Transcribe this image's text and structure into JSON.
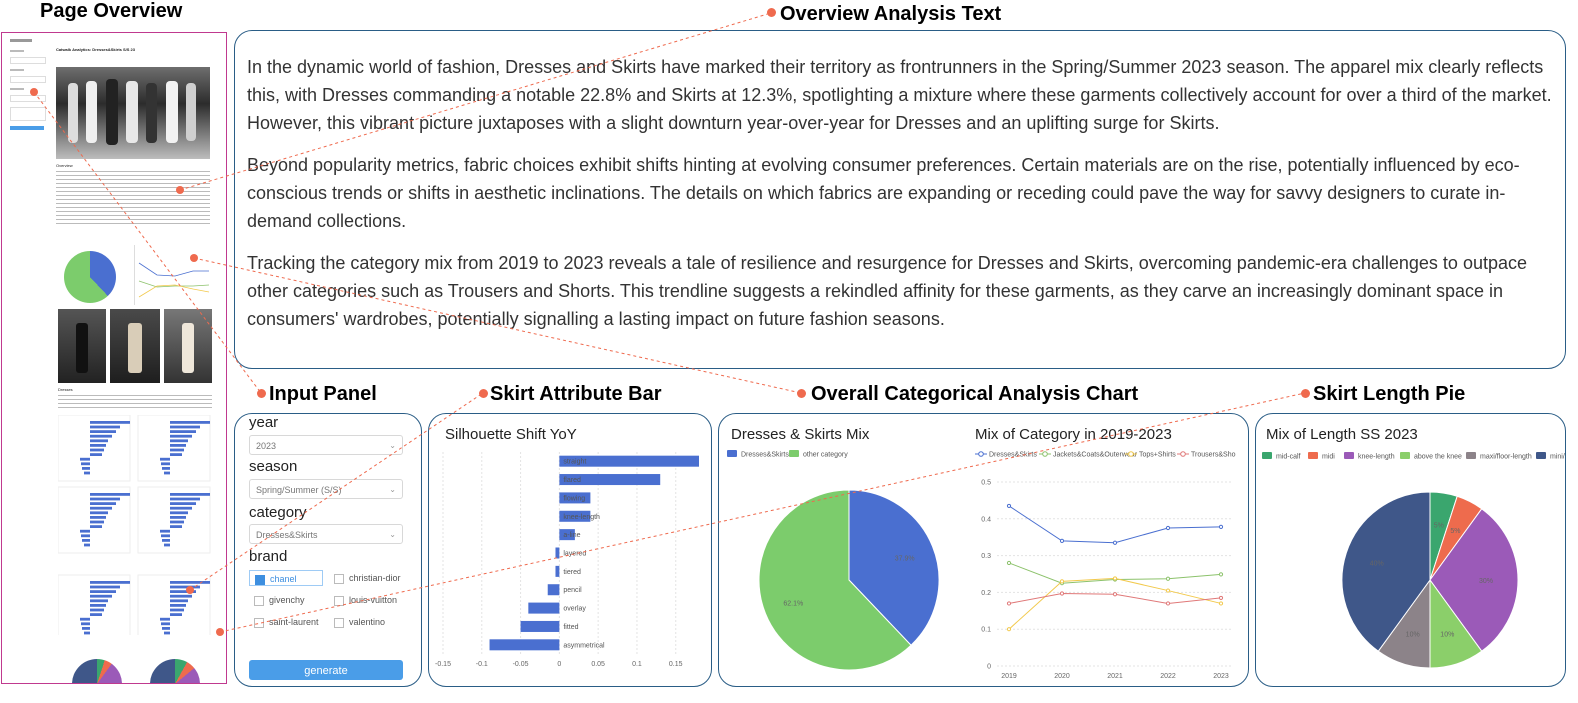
{
  "headers": {
    "page_overview": "Page Overview",
    "overview_text": "Overview Analysis Text",
    "input_panel": "Input Panel",
    "skirt_bar": "Skirt Attribute Bar",
    "categorical_chart": "Overall  Categorical Analysis Chart",
    "length_pie": "Skirt Length Pie"
  },
  "overview_paragraphs": [
    "In the dynamic world of fashion, Dresses and Skirts have marked their territory as frontrunners in the Spring/Summer 2023 season. The apparel mix clearly reflects this, with Dresses commanding a notable 22.8% and Skirts at 12.3%, spotlighting a mixture where these garments collectively account for over a third of the market. However, this vibrant picture juxtaposes with a slight downturn year-over-year for Dresses and an uplifting surge for Skirts.",
    "Beyond popularity metrics, fabric choices exhibit shifts hinting at evolving consumer preferences. Certain materials are on the rise, potentially influenced by eco-conscious trends or shifts in aesthetic inclinations. The details on which fabrics are expanding or receding could pave the way for savvy designers to curate in-demand collections.",
    "Tracking the category mix from 2019 to 2023 reveals a tale of resilience and resurgence for Dresses and Skirts, overcoming pandemic-era challenges to outpace other categories such as Trousers and Shorts. This trendline suggests a rekindled affinity for these garments, as they carve an increasingly dominant space in consumers' wardrobes, potentially signalling a lasting impact on future fashion seasons."
  ],
  "input_panel": {
    "year_label": "year",
    "year_value": "2023",
    "season_label": "season",
    "season_value": "Spring/Summer (S/S)",
    "category_label": "category",
    "category_value": "Dresses&Skirts",
    "brand_label": "brand",
    "brands": [
      {
        "name": "chanel",
        "checked": true
      },
      {
        "name": "christian-dior",
        "checked": false
      },
      {
        "name": "givenchy",
        "checked": false
      },
      {
        "name": "louis-vuitton",
        "checked": false
      },
      {
        "name": "saint-laurent",
        "checked": false
      },
      {
        "name": "valentino",
        "checked": false
      }
    ],
    "generate_label": "generate"
  },
  "thumbnail": {
    "title": "Catwalk Analytics: Dresses&Skirts S/S 23",
    "section_overview": "Overview",
    "section_dresses": "Dresses"
  },
  "colors": {
    "accent_orange": "#ef6a4e",
    "panel_border": "#2a5d86",
    "bar_blue": "#4a6fd0",
    "page_border": "#c0398f"
  },
  "chart_data": [
    {
      "type": "bar",
      "title": "Silhouette Shift YoY",
      "orientation": "horizontal",
      "categories": [
        "straight",
        "flared",
        "flowing",
        "knee-length",
        "a-line",
        "layered",
        "tiered",
        "pencil",
        "overlay",
        "fitted",
        "asymmetrical"
      ],
      "values": [
        0.18,
        0.13,
        0.04,
        0.04,
        0.02,
        -0.005,
        -0.005,
        -0.015,
        -0.04,
        -0.05,
        -0.09
      ],
      "xticks": [
        "-0.15",
        "-0.1",
        "-0.05",
        "0",
        "0.05",
        "0.1",
        "0.15"
      ],
      "xlim": [
        -0.15,
        0.18
      ]
    },
    {
      "type": "pie",
      "title": "Dresses & Skirts Mix",
      "categories": [
        "Dresses&Skirts",
        "other category"
      ],
      "values": [
        37.9,
        62.1
      ],
      "labels": [
        "37.9%",
        "62.1%"
      ],
      "colors": [
        "#4a6fd0",
        "#7ccc6c"
      ]
    },
    {
      "type": "line",
      "title": "Mix of Category in 2019-2023",
      "x": [
        "2019",
        "2020",
        "2021",
        "2022",
        "2023"
      ],
      "series": [
        {
          "name": "Dresses&Skirts",
          "values": [
            0.435,
            0.34,
            0.335,
            0.375,
            0.378
          ],
          "color": "#4a6fd0"
        },
        {
          "name": "Jackets&Coats&Outerwear",
          "values": [
            0.28,
            0.225,
            0.235,
            0.237,
            0.249
          ],
          "color": "#8cc26b"
        },
        {
          "name": "Tops+Shirts",
          "values": [
            0.1,
            0.23,
            0.238,
            0.205,
            0.17
          ],
          "color": "#f2c94c"
        },
        {
          "name": "Trousers&Sho",
          "values": [
            0.17,
            0.197,
            0.195,
            0.17,
            0.185
          ],
          "color": "#e07878"
        }
      ],
      "yticks": [
        "0",
        "0.1",
        "0.2",
        "0.3",
        "0.4",
        "0.5"
      ],
      "ylim": [
        0,
        0.5
      ]
    },
    {
      "type": "pie",
      "title": "Mix of Length SS 2023",
      "categories": [
        "mid-calf",
        "midi",
        "knee-length",
        "above the knee",
        "maxi/floor-length",
        "mini/short"
      ],
      "values": [
        5,
        5,
        30,
        10,
        10,
        40
      ],
      "labels": [
        "5%",
        "5%",
        "30%",
        "10%",
        "10%",
        "40%"
      ],
      "colors": [
        "#3aa66e",
        "#ee6b4d",
        "#9b5ab8",
        "#8bcf6a",
        "#8c8389",
        "#3f5789"
      ]
    }
  ]
}
